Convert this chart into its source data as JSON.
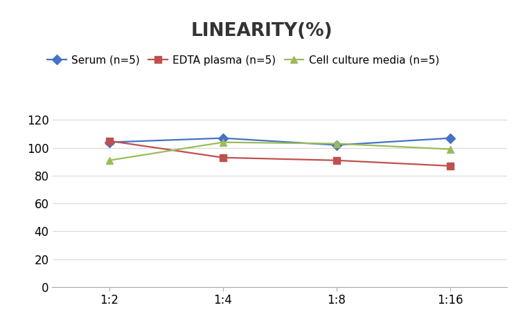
{
  "title": "LINEARITY(%)",
  "x_labels": [
    "1:2",
    "1:4",
    "1:8",
    "1:16"
  ],
  "x_positions": [
    0,
    1,
    2,
    3
  ],
  "series": [
    {
      "label": "Serum (n=5)",
      "color": "#4472C4",
      "marker": "D",
      "markersize": 7,
      "values": [
        104,
        107,
        102,
        107
      ]
    },
    {
      "label": "EDTA plasma (n=5)",
      "color": "#C0504D",
      "marker": "s",
      "markersize": 7,
      "values": [
        105,
        93,
        91,
        87
      ]
    },
    {
      "label": "Cell culture media (n=5)",
      "color": "#9BBB59",
      "marker": "^",
      "markersize": 7,
      "values": [
        91,
        104,
        103,
        99
      ]
    }
  ],
  "ylim": [
    0,
    130
  ],
  "yticks": [
    0,
    20,
    40,
    60,
    80,
    100,
    120
  ],
  "background_color": "#ffffff",
  "title_fontsize": 19,
  "legend_fontsize": 11,
  "tick_fontsize": 12
}
